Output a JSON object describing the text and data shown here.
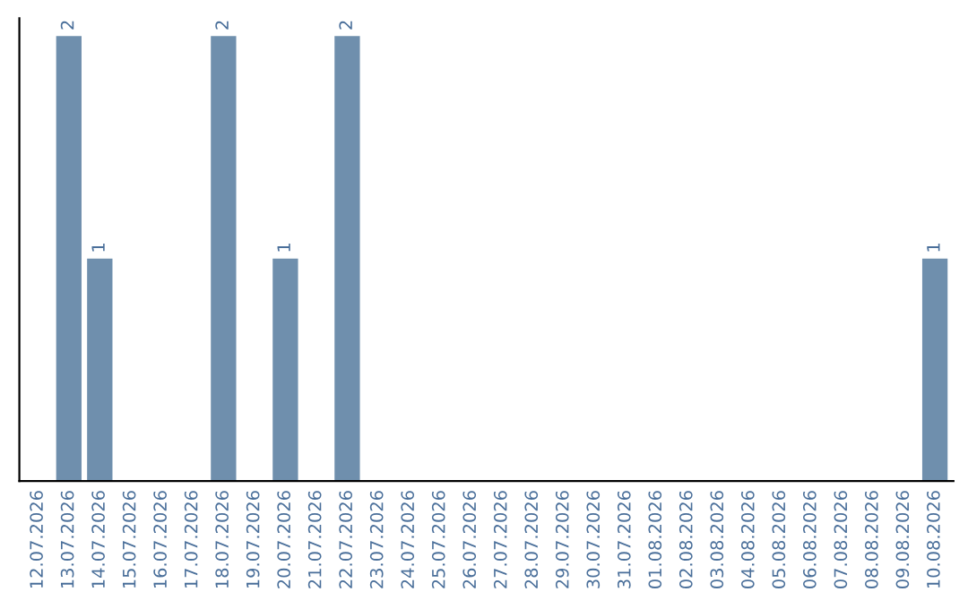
{
  "chart_data": {
    "type": "bar",
    "categories": [
      "12.07.2026",
      "13.07.2026",
      "14.07.2026",
      "15.07.2026",
      "16.07.2026",
      "17.07.2026",
      "18.07.2026",
      "19.07.2026",
      "20.07.2026",
      "21.07.2026",
      "22.07.2026",
      "23.07.2026",
      "24.07.2026",
      "25.07.2026",
      "26.07.2026",
      "27.07.2026",
      "28.07.2026",
      "29.07.2026",
      "30.07.2026",
      "31.07.2026",
      "01.08.2026",
      "02.08.2026",
      "03.08.2026",
      "04.08.2026",
      "05.08.2026",
      "06.08.2026",
      "07.08.2026",
      "08.08.2026",
      "09.08.2026",
      "10.08.2026"
    ],
    "values": [
      0,
      2,
      1,
      0,
      0,
      0,
      2,
      0,
      1,
      0,
      2,
      0,
      0,
      0,
      0,
      0,
      0,
      0,
      0,
      0,
      0,
      0,
      0,
      0,
      0,
      0,
      0,
      0,
      0,
      1
    ],
    "color": "#6f8fad",
    "value_labels": [
      null,
      "2",
      "1",
      null,
      null,
      null,
      "2",
      null,
      "1",
      null,
      "2",
      null,
      null,
      null,
      null,
      null,
      null,
      null,
      null,
      null,
      null,
      null,
      null,
      null,
      null,
      null,
      null,
      null,
      null,
      "1"
    ],
    "tick_labels": "x",
    "grid": false,
    "legend": false
  }
}
